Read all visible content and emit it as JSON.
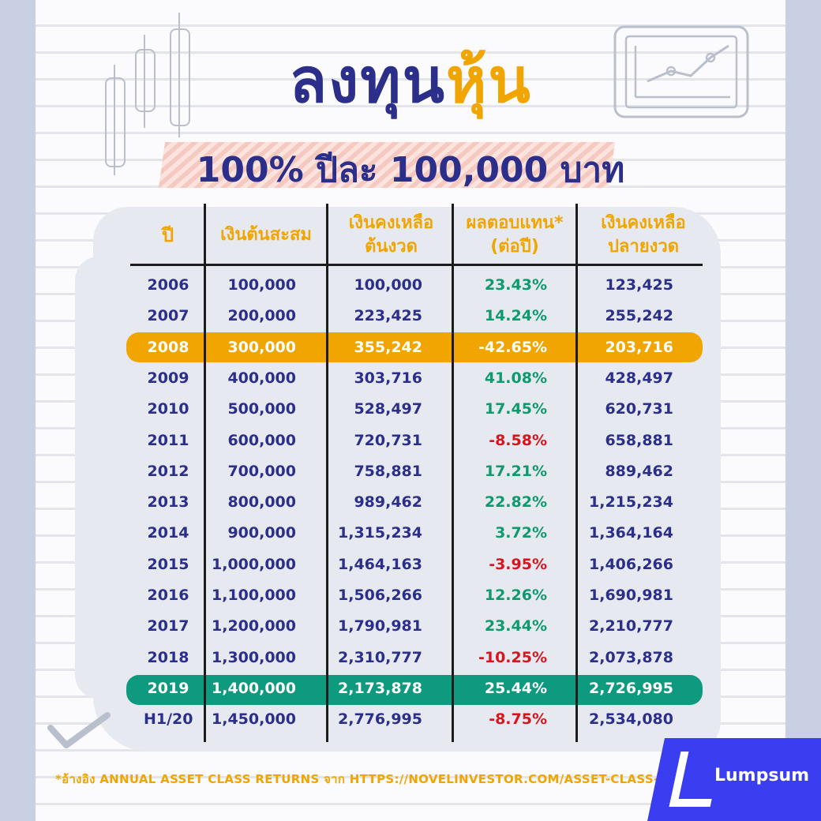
{
  "title": {
    "part1": "ลงทุน",
    "part2": "หุ้น"
  },
  "subtitle": "100% ปีละ 100,000 บาท",
  "headers": {
    "year": "ปี",
    "accumulated": "เงินต้นสะสม",
    "begin_line1": "เงินคงเหลือ",
    "begin_line2": "ต้นงวด",
    "return_line1": "ผลตอบแทน*",
    "return_line2": "(ต่อปี)",
    "end_line1": "เงินคงเหลือ",
    "end_line2": "ปลายงวด"
  },
  "rows": [
    {
      "year": "2006",
      "accumulated": "100,000",
      "begin": "100,000",
      "return": "23.43%",
      "end": "123,425"
    },
    {
      "year": "2007",
      "accumulated": "200,000",
      "begin": "223,425",
      "return": "14.24%",
      "end": "255,242"
    },
    {
      "year": "2008",
      "accumulated": "300,000",
      "begin": "355,242",
      "return": "-42.65%",
      "end": "203,716"
    },
    {
      "year": "2009",
      "accumulated": "400,000",
      "begin": "303,716",
      "return": "41.08%",
      "end": "428,497"
    },
    {
      "year": "2010",
      "accumulated": "500,000",
      "begin": "528,497",
      "return": "17.45%",
      "end": "620,731"
    },
    {
      "year": "2011",
      "accumulated": "600,000",
      "begin": "720,731",
      "return": "-8.58%",
      "end": "658,881"
    },
    {
      "year": "2012",
      "accumulated": "700,000",
      "begin": "758,881",
      "return": "17.21%",
      "end": "889,462"
    },
    {
      "year": "2013",
      "accumulated": "800,000",
      "begin": "989,462",
      "return": "22.82%",
      "end": "1,215,234"
    },
    {
      "year": "2014",
      "accumulated": "900,000",
      "begin": "1,315,234",
      "return": "3.72%",
      "end": "1,364,164"
    },
    {
      "year": "2015",
      "accumulated": "1,000,000",
      "begin": "1,464,163",
      "return": "-3.95%",
      "end": "1,406,266"
    },
    {
      "year": "2016",
      "accumulated": "1,100,000",
      "begin": "1,506,266",
      "return": "12.26%",
      "end": "1,690,981"
    },
    {
      "year": "2017",
      "accumulated": "1,200,000",
      "begin": "1,790,981",
      "return": "23.44%",
      "end": "2,210,777"
    },
    {
      "year": "2018",
      "accumulated": "1,300,000",
      "begin": "2,310,777",
      "return": "-10.25%",
      "end": "2,073,878"
    },
    {
      "year": "2019",
      "accumulated": "1,400,000",
      "begin": "2,173,878",
      "return": "25.44%",
      "end": "2,726,995"
    },
    {
      "year": "H1/20",
      "accumulated": "1,450,000",
      "begin": "2,776,995",
      "return": "-8.75%",
      "end": "2,534,080"
    }
  ],
  "footnote": "*อ้างอิง ANNUAL ASSET CLASS RETURNS จาก HTTPS://NOVELINVESTOR.COM/ASSET-CLASS-RETURNS/",
  "logo": {
    "name": "Lumpsum",
    "mark_text": "ump sum"
  },
  "colors": {
    "navy": "#2b2f8a",
    "orange": "#f0a500",
    "green_highlight": "#0e9a7e",
    "positive": "#0e9a6e",
    "negative": "#d8141d",
    "brand_blue": "#3b3df0"
  },
  "icons": {
    "decor_left": "candlestick-icon",
    "decor_right": "tablet-chart-icon",
    "decor_check": "checkmark-icon"
  }
}
